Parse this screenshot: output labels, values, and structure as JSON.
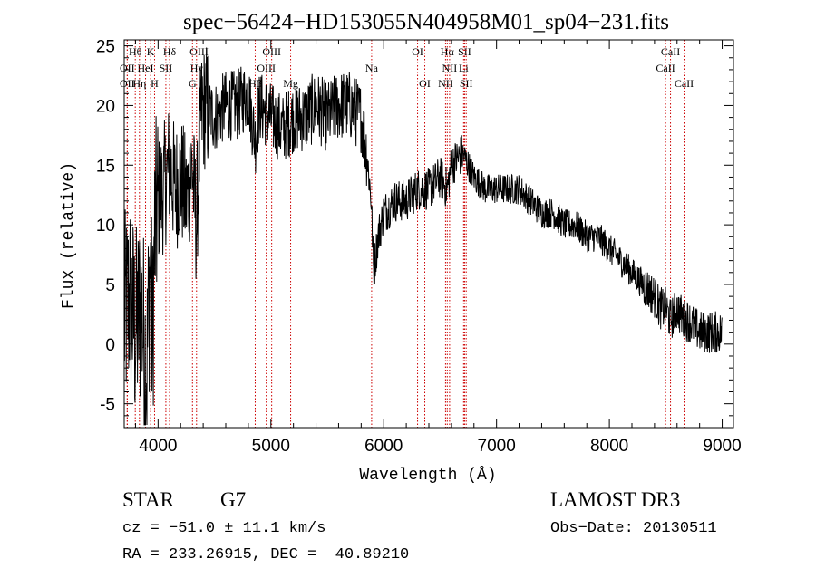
{
  "chart_data": {
    "type": "line",
    "title": "spec−56424−HD153055N404958M01_sp04−231.fits",
    "xlabel": "Wavelength (Å)",
    "ylabel": "Flux (relative)",
    "xlim": [
      3700,
      9100
    ],
    "ylim": [
      -7,
      25.5
    ],
    "xticks": [
      4000,
      5000,
      6000,
      7000,
      8000,
      9000
    ],
    "yticks": [
      -5,
      0,
      5,
      10,
      15,
      20,
      25
    ],
    "grid": false,
    "series": [
      {
        "x": [
          3700,
          3750,
          3800,
          3850,
          3900,
          3930,
          3950,
          3970,
          4000,
          4050,
          4100,
          4150,
          4200,
          4250,
          4300,
          4340,
          4380,
          4420,
          4500,
          4600,
          4700,
          4800,
          4861,
          4900,
          5000,
          5100,
          5200,
          5300,
          5400,
          5500,
          5600,
          5700,
          5800,
          5850,
          5890,
          5910,
          5950,
          6000,
          6100,
          6200,
          6300,
          6400,
          6500,
          6563,
          6600,
          6700,
          6800,
          6900,
          7000,
          7100,
          7200,
          7300,
          7400,
          7500,
          7600,
          7700,
          7800,
          7900,
          8000,
          8100,
          8200,
          8300,
          8400,
          8450,
          8500,
          8542,
          8600,
          8662,
          8700,
          8800,
          8900,
          9000
        ],
        "y": [
          2,
          4,
          1,
          3,
          -2,
          7,
          0,
          9,
          12,
          13,
          15,
          13,
          14,
          12,
          15,
          10,
          19,
          20,
          19,
          20,
          20,
          21,
          17,
          20,
          19,
          18,
          19,
          19,
          20,
          19,
          20,
          20,
          19,
          16,
          12,
          6,
          9,
          11,
          12,
          12,
          13,
          13,
          14,
          13,
          15,
          16,
          14,
          13,
          13,
          13,
          13,
          12,
          11,
          11,
          10,
          10,
          9,
          9,
          8,
          7,
          6,
          5,
          4,
          3,
          3,
          2,
          3,
          2,
          2,
          1,
          1,
          1
        ]
      }
    ],
    "line_colors": {
      "spectrum": "#000000",
      "lines": "#cc0000"
    },
    "spectral_lines": [
      {
        "label": "Hθ",
        "wave": 3798,
        "row": 1
      },
      {
        "label": "OII",
        "wave": 3727,
        "row": 2
      },
      {
        "label": "OII",
        "wave": 3727,
        "row": 3
      },
      {
        "label": "K",
        "wave": 3934,
        "row": 1
      },
      {
        "label": "HeI",
        "wave": 3889,
        "row": 2
      },
      {
        "label": "Hη",
        "wave": 3835,
        "row": 3
      },
      {
        "label": "SII",
        "wave": 4069,
        "row": 2
      },
      {
        "label": "H",
        "wave": 3969,
        "row": 3
      },
      {
        "label": "Hδ",
        "wave": 4102,
        "row": 1
      },
      {
        "label": "OIII",
        "wave": 4363,
        "row": 1
      },
      {
        "label": "Hγ",
        "wave": 4341,
        "row": 2
      },
      {
        "label": "G",
        "wave": 4305,
        "row": 3
      },
      {
        "label": "Hβ",
        "wave": 4861,
        "row": 3
      },
      {
        "label": "OIII",
        "wave": 5007,
        "row": 1
      },
      {
        "label": "OIII",
        "wave": 4959,
        "row": 2
      },
      {
        "label": "Mg",
        "wave": 5175,
        "row": 3
      },
      {
        "label": "Na",
        "wave": 5893,
        "row": 2
      },
      {
        "label": "OI",
        "wave": 6300,
        "row": 1
      },
      {
        "label": "OI",
        "wave": 6364,
        "row": 3
      },
      {
        "label": "Hα",
        "wave": 6563,
        "row": 1
      },
      {
        "label": "SII",
        "wave": 6717,
        "row": 1
      },
      {
        "label": "NII",
        "wave": 6584,
        "row": 2
      },
      {
        "label": "Li",
        "wave": 6708,
        "row": 2
      },
      {
        "label": "NII",
        "wave": 6548,
        "row": 3
      },
      {
        "label": "SII",
        "wave": 6731,
        "row": 3
      },
      {
        "label": "CaII",
        "wave": 8542,
        "row": 1
      },
      {
        "label": "CaII",
        "wave": 8498,
        "row": 2
      },
      {
        "label": "CaII",
        "wave": 8662,
        "row": 3
      }
    ]
  },
  "info": {
    "class": "STAR",
    "subclass": "G7",
    "survey": "LAMOST DR3",
    "cz": "cz = −51.0 ± 11.1 km/s",
    "obs_date": "Obs−Date: 20130511",
    "radec": "RA = 233.26915, DEC =  40.89210"
  }
}
